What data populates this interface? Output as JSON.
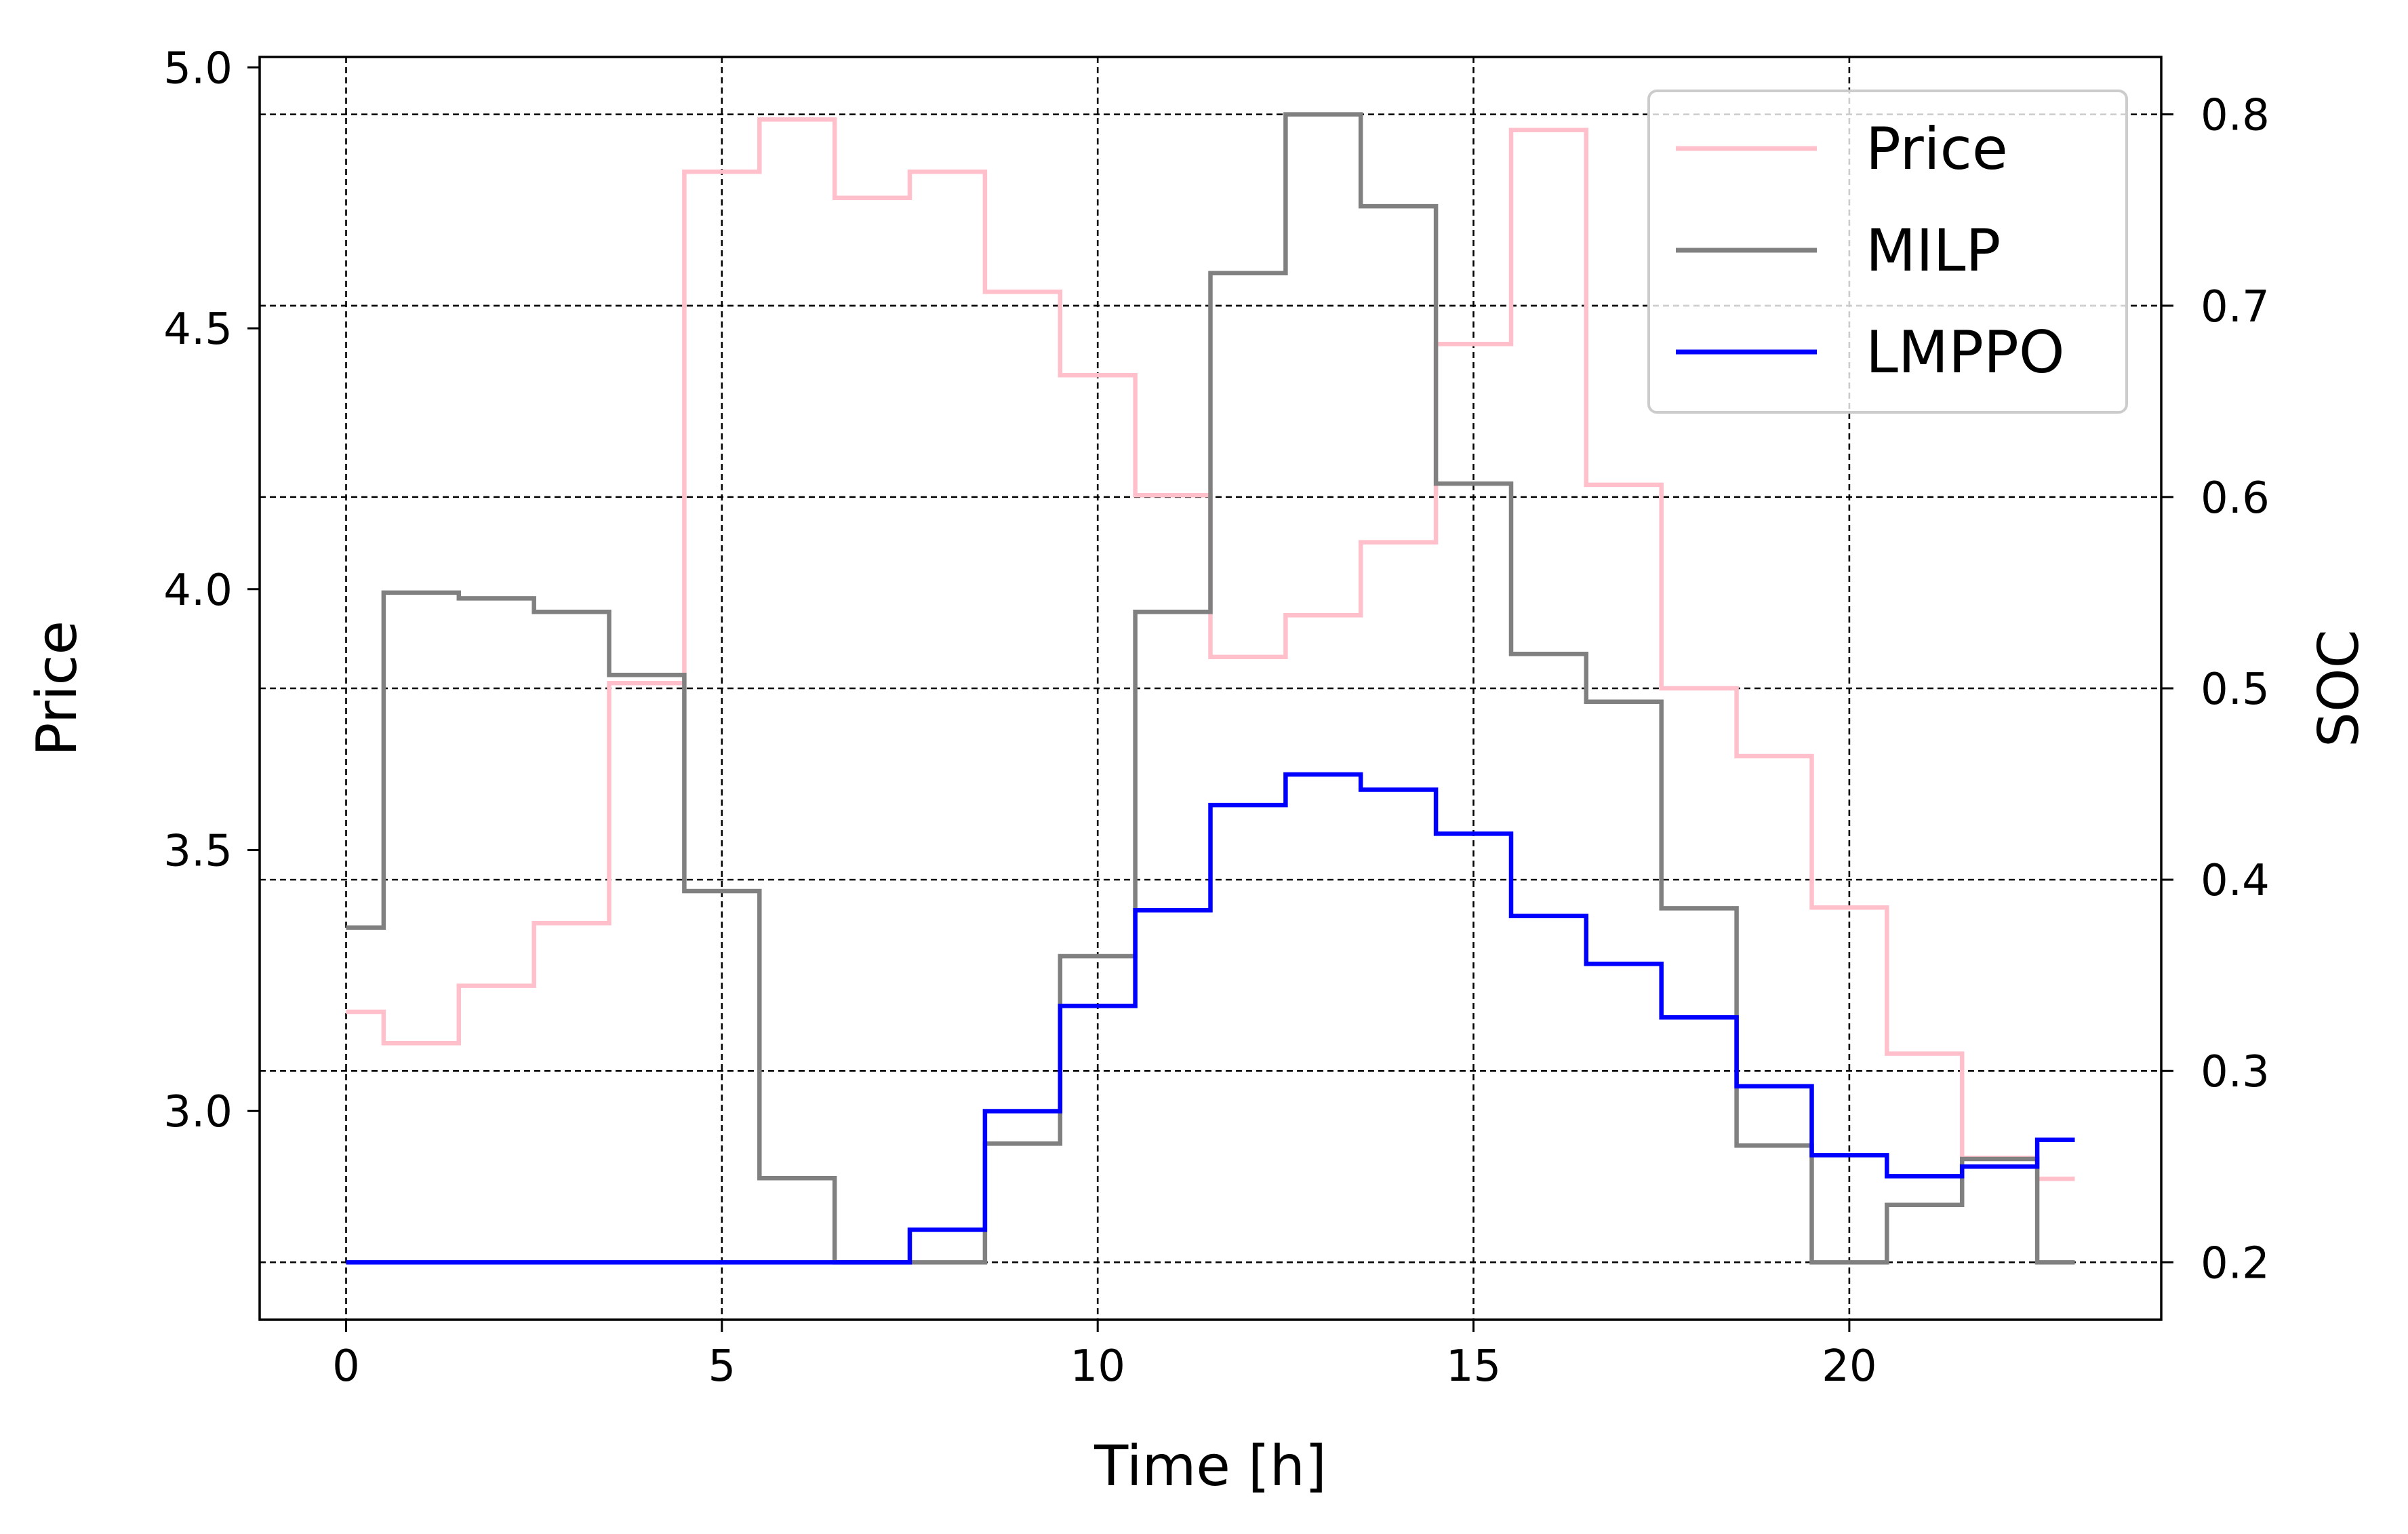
{
  "chart_data": {
    "type": "line",
    "step": true,
    "xlabel": "Time [h]",
    "ylabel_left": "Price",
    "ylabel_right": "SOC",
    "xlim": [
      -1.15,
      24.15
    ],
    "ylim_left": [
      2.6,
      5.02
    ],
    "ylim_right": [
      0.17,
      0.83
    ],
    "xticks": [
      0,
      5,
      10,
      15,
      20
    ],
    "yticks_left": [
      3.0,
      3.5,
      4.0,
      4.5,
      5.0
    ],
    "yticks_right": [
      0.2,
      0.3,
      0.4,
      0.5,
      0.6,
      0.7,
      0.8
    ],
    "grid": true,
    "legend_position": "top-right",
    "x": [
      0,
      1,
      2,
      3,
      4,
      5,
      6,
      7,
      8,
      9,
      10,
      11,
      12,
      13,
      14,
      15,
      16,
      17,
      18,
      19,
      20,
      21,
      22,
      23
    ],
    "series": [
      {
        "name": "Price",
        "axis": "left",
        "color": "#ffc0cb",
        "values": [
          3.19,
          3.13,
          3.24,
          3.36,
          3.82,
          4.8,
          4.9,
          4.75,
          4.8,
          4.57,
          4.41,
          4.18,
          3.87,
          3.95,
          4.09,
          4.47,
          4.88,
          4.2,
          3.81,
          3.68,
          3.39,
          3.11,
          2.91,
          2.87
        ]
      },
      {
        "name": "MILP",
        "axis": "right",
        "color": "#808080",
        "values": [
          0.375,
          0.55,
          0.547,
          0.54,
          0.507,
          0.394,
          0.244,
          0.2,
          0.2,
          0.262,
          0.36,
          0.54,
          0.717,
          0.8,
          0.752,
          0.607,
          0.518,
          0.493,
          0.385,
          0.261,
          0.2,
          0.23,
          0.254,
          0.2
        ]
      },
      {
        "name": "LMPPO",
        "axis": "right",
        "color": "#0000ff",
        "values": [
          0.2,
          0.2,
          0.2,
          0.2,
          0.2,
          0.2,
          0.2,
          0.2,
          0.217,
          0.279,
          0.334,
          0.384,
          0.439,
          0.455,
          0.447,
          0.424,
          0.381,
          0.356,
          0.328,
          0.292,
          0.256,
          0.245,
          0.25,
          0.264
        ]
      }
    ]
  }
}
